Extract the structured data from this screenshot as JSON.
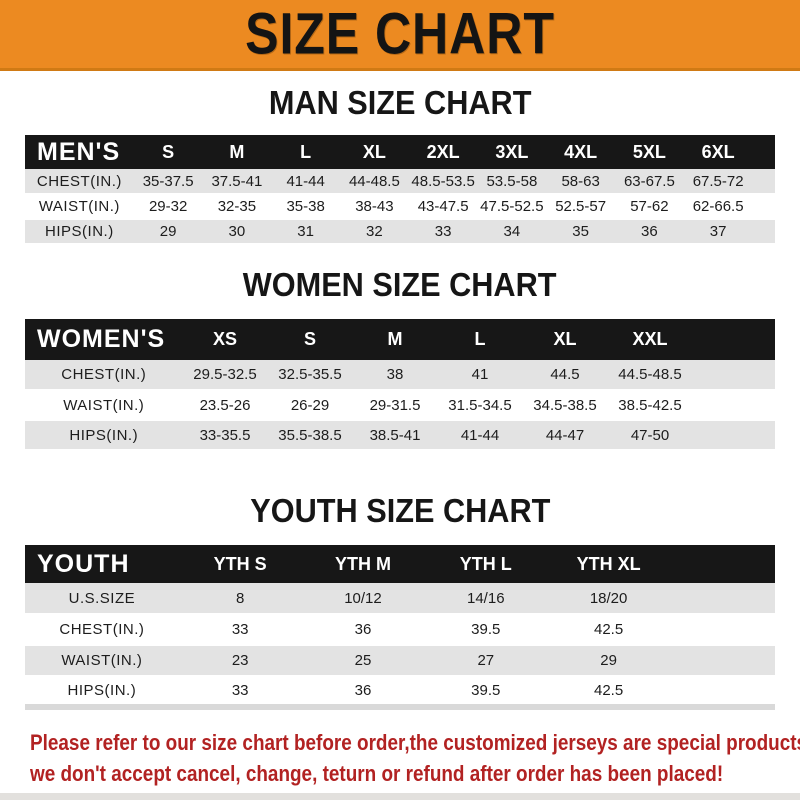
{
  "banner": {
    "title": "SIZE CHART"
  },
  "colors": {
    "banner_bg": "#EC8A21",
    "table_header_bg": "#171717",
    "row_alt_bg": "#E3E3E3",
    "footer_text": "#B22222",
    "text": "#141414"
  },
  "sections": [
    {
      "heading": "MAN SIZE CHART",
      "table": {
        "header_label": "MEN'S",
        "columns": [
          "S",
          "M",
          "L",
          "XL",
          "2XL",
          "3XL",
          "4XL",
          "5XL",
          "6XL"
        ],
        "rows": [
          {
            "label": "CHEST(IN.)",
            "values": [
              "35-37.5",
              "37.5-41",
              "41-44",
              "44-48.5",
              "48.5-53.5",
              "53.5-58",
              "58-63",
              "63-67.5",
              "67.5-72"
            ]
          },
          {
            "label": "WAIST(IN.)",
            "values": [
              "29-32",
              "32-35",
              "35-38",
              "38-43",
              "43-47.5",
              "47.5-52.5",
              "52.5-57",
              "57-62",
              "62-66.5"
            ]
          },
          {
            "label": "HIPS(IN.)",
            "values": [
              "29",
              "30",
              "31",
              "32",
              "33",
              "34",
              "35",
              "36",
              "37"
            ]
          }
        ]
      }
    },
    {
      "heading": "WOMEN SIZE CHART",
      "table": {
        "header_label": "WOMEN'S",
        "columns": [
          "XS",
          "S",
          "M",
          "L",
          "XL",
          "XXL"
        ],
        "rows": [
          {
            "label": "CHEST(IN.)",
            "values": [
              "29.5-32.5",
              "32.5-35.5",
              "38",
              "41",
              "44.5",
              "44.5-48.5"
            ]
          },
          {
            "label": "WAIST(IN.)",
            "values": [
              "23.5-26",
              "26-29",
              "29-31.5",
              "31.5-34.5",
              "34.5-38.5",
              "38.5-42.5"
            ]
          },
          {
            "label": "HIPS(IN.)",
            "values": [
              "33-35.5",
              "35.5-38.5",
              "38.5-41",
              "41-44",
              "44-47",
              "47-50"
            ]
          }
        ]
      }
    },
    {
      "heading": "YOUTH SIZE CHART",
      "table": {
        "header_label": "YOUTH",
        "columns": [
          "YTH S",
          "YTH M",
          "YTH L",
          "YTH XL"
        ],
        "rows": [
          {
            "label": "U.S.SIZE",
            "values": [
              "8",
              "10/12",
              "14/16",
              "18/20"
            ]
          },
          {
            "label": "CHEST(IN.)",
            "values": [
              "33",
              "36",
              "39.5",
              "42.5"
            ]
          },
          {
            "label": "WAIST(IN.)",
            "values": [
              "23",
              "25",
              "27",
              "29"
            ]
          },
          {
            "label": "HIPS(IN.)",
            "values": [
              "33",
              "36",
              "39.5",
              "42.5"
            ]
          }
        ]
      }
    }
  ],
  "footer": {
    "line1": "Please refer to our size chart before order,the customized jerseys are special products,",
    "line2": "we don't accept cancel, change, teturn or refund after order has been placed!"
  }
}
